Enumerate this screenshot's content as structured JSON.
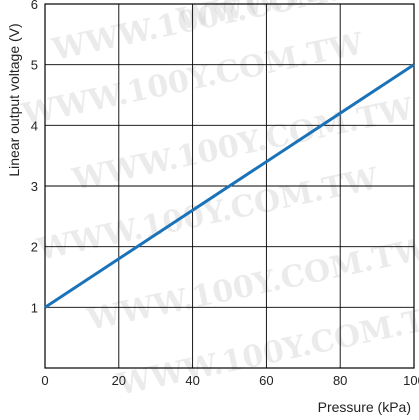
{
  "chart_data": {
    "type": "line",
    "title": "",
    "xlabel": "Pressure (kPa)",
    "ylabel": "Linear output voltage (V)",
    "xlim": [
      0,
      100
    ],
    "ylim": [
      0,
      6
    ],
    "x_ticks": [
      0,
      20,
      40,
      60,
      80,
      100
    ],
    "y_ticks": [
      1,
      2,
      3,
      4,
      5,
      6
    ],
    "grid": true,
    "legend": "none",
    "series": [
      {
        "color": "#1a72b8",
        "x": [
          0,
          100
        ],
        "y": [
          1.0,
          5.0
        ]
      }
    ],
    "watermark": "WWW.100Y.COM.TW"
  }
}
